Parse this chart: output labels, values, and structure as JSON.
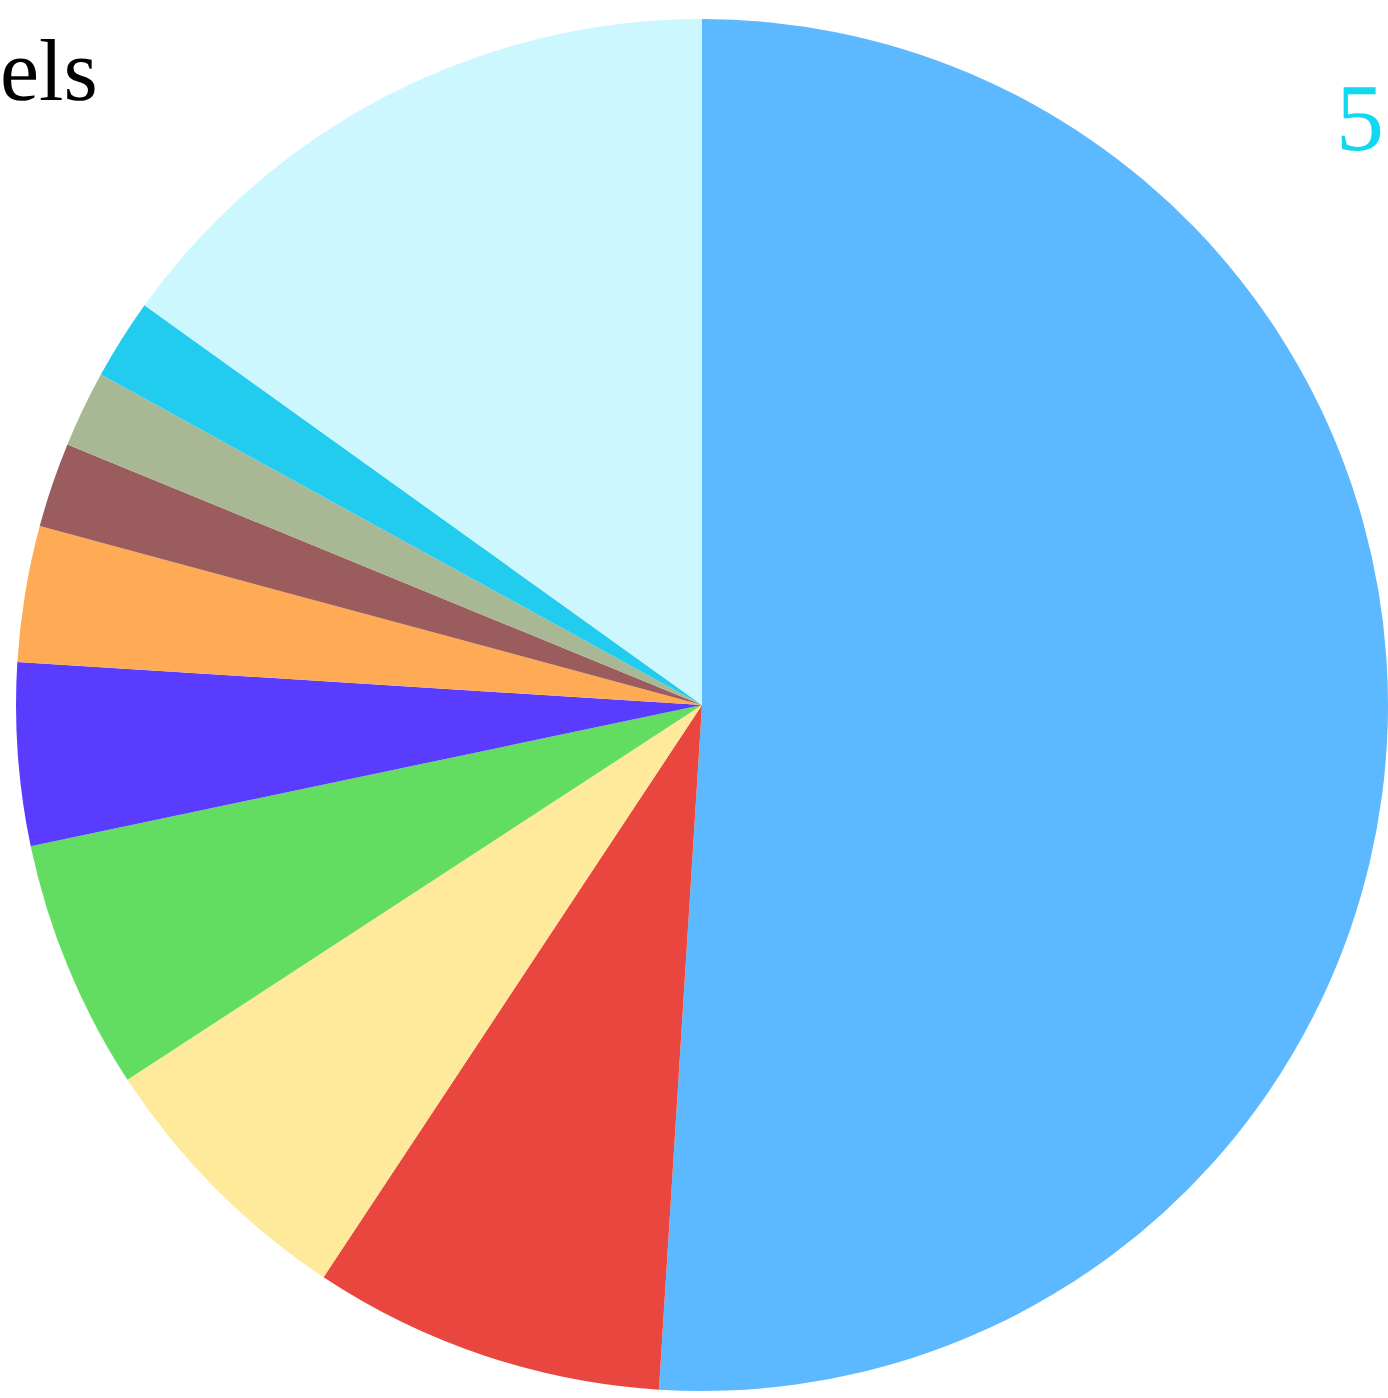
{
  "chart_data": {
    "type": "pie",
    "title": "els",
    "annotations": [
      "5"
    ],
    "categories": [
      null,
      null,
      null,
      null,
      null,
      null,
      null,
      null,
      null,
      null
    ],
    "values": [
      51,
      8.3,
      6.5,
      5.9,
      4.3,
      3.2,
      2,
      1.8,
      1.9,
      15.1
    ],
    "colors": [
      "#5cb8ff",
      "#e8463e",
      "#ffe99a",
      "#62dd62",
      "#5a3cff",
      "#ffaa55",
      "#9a5c5c",
      "#a8b894",
      "#22ccee",
      "#ccf7ff"
    ],
    "legend": false
  }
}
